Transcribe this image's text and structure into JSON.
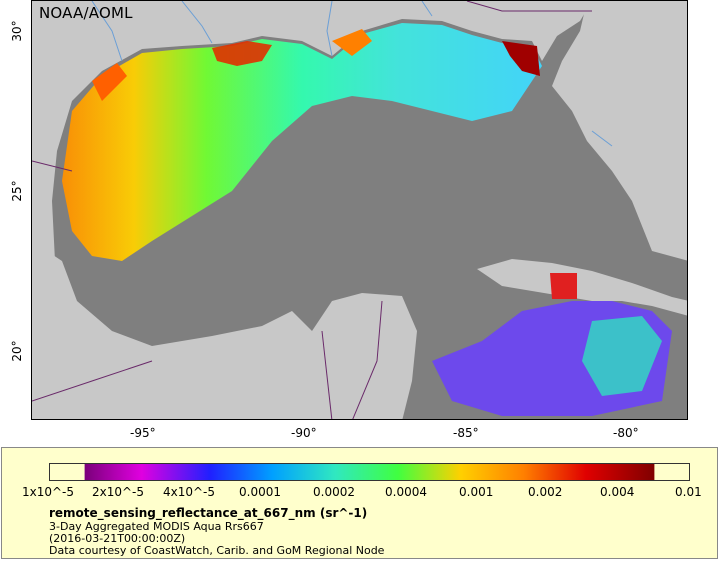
{
  "map": {
    "watermark": "NOAA/AOML",
    "lon_ticks": [
      "-95°",
      "-90°",
      "-85°",
      "-80°"
    ],
    "lat_ticks": [
      "30°",
      "25°",
      "20°"
    ],
    "colors": {
      "ocean": "#7f7f7f",
      "land": "#c8c8c8",
      "rivers": "#6b9fd6",
      "borders": "#6a2a6a"
    }
  },
  "legend": {
    "colorbar_ticks": [
      "1x10^-5",
      "2x10^-5",
      "4x10^-5",
      "0.0001",
      "0.0002",
      "0.0004",
      "0.001",
      "0.002",
      "0.004",
      "0.01"
    ],
    "title": "remote_sensing_reflectance_at_667_nm (sr^-1)",
    "line1": "3-Day Aggregated MODIS Aqua Rrs667",
    "line2": "(2016-03-21T00:00:00Z)",
    "line3": "Data courtesy of CoastWatch, Carib. and GoM Regional Node"
  }
}
